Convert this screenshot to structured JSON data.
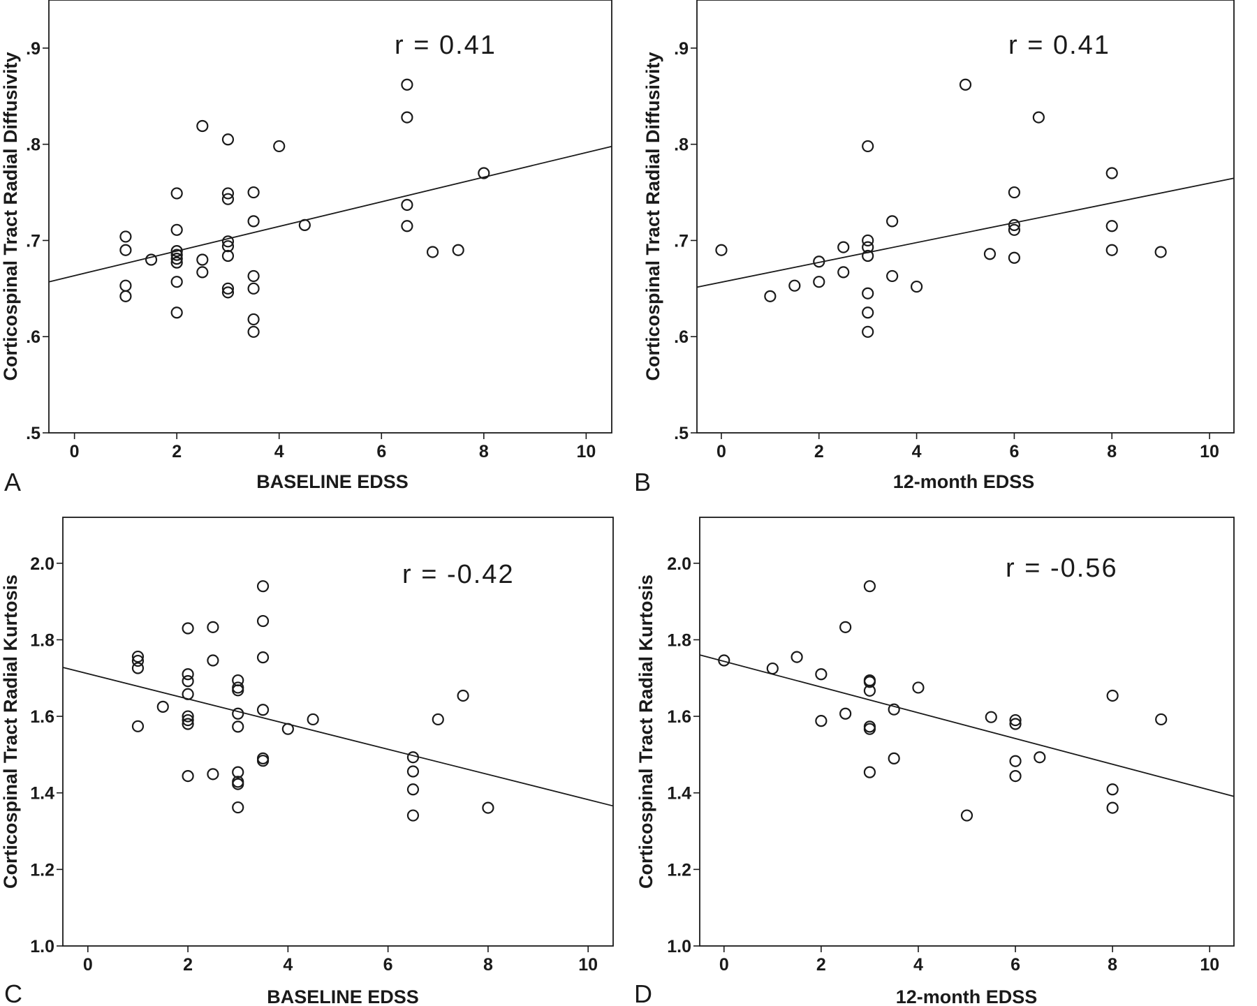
{
  "chart_data": [
    {
      "type": "scatter",
      "panel_label": "A",
      "xlabel": "BASELINE EDSS",
      "ylabel": "Corticospinal Tract Radial Diffusivity",
      "xlim": [
        -0.5,
        10.5
      ],
      "ylim": [
        0.5,
        0.95
      ],
      "xticks": [
        0,
        2,
        4,
        6,
        8,
        10
      ],
      "xtick_labels": [
        "0",
        "2",
        "4",
        "6",
        "8",
        "10"
      ],
      "yticks": [
        0.5,
        0.6,
        0.7,
        0.8,
        0.9
      ],
      "ytick_labels": [
        ".5",
        ".6",
        ".7",
        ".8",
        ".9"
      ],
      "annotation": "r = 0.41",
      "fit_line": {
        "intercept": 0.6634,
        "slope": 0.0128
      },
      "points": [
        [
          1,
          0.704
        ],
        [
          1,
          0.69
        ],
        [
          1,
          0.653
        ],
        [
          1,
          0.642
        ],
        [
          1.5,
          0.68
        ],
        [
          2,
          0.749
        ],
        [
          2,
          0.711
        ],
        [
          2,
          0.689
        ],
        [
          2,
          0.685
        ],
        [
          2,
          0.681
        ],
        [
          2,
          0.677
        ],
        [
          2,
          0.657
        ],
        [
          2,
          0.625
        ],
        [
          2.5,
          0.819
        ],
        [
          2.5,
          0.68
        ],
        [
          2.5,
          0.667
        ],
        [
          3,
          0.805
        ],
        [
          3,
          0.749
        ],
        [
          3,
          0.743
        ],
        [
          3,
          0.699
        ],
        [
          3,
          0.694
        ],
        [
          3,
          0.684
        ],
        [
          3,
          0.65
        ],
        [
          3,
          0.646
        ],
        [
          3.5,
          0.75
        ],
        [
          3.5,
          0.72
        ],
        [
          3.5,
          0.663
        ],
        [
          3.5,
          0.65
        ],
        [
          3.5,
          0.618
        ],
        [
          3.5,
          0.605
        ],
        [
          4,
          0.798
        ],
        [
          4.5,
          0.716
        ],
        [
          6.5,
          0.862
        ],
        [
          6.5,
          0.828
        ],
        [
          6.5,
          0.737
        ],
        [
          6.5,
          0.715
        ],
        [
          7,
          0.688
        ],
        [
          7.5,
          0.69
        ],
        [
          8,
          0.77
        ]
      ]
    },
    {
      "type": "scatter",
      "panel_label": "B",
      "xlabel": "12-month EDSS",
      "ylabel": "Corticospinal Tract Radial Diffusivity",
      "xlim": [
        -0.5,
        10.5
      ],
      "ylim": [
        0.5,
        0.95
      ],
      "xticks": [
        0,
        2,
        4,
        6,
        8,
        10
      ],
      "xtick_labels": [
        "0",
        "2",
        "4",
        "6",
        "8",
        "10"
      ],
      "yticks": [
        0.5,
        0.6,
        0.7,
        0.8,
        0.9
      ],
      "ytick_labels": [
        ".5",
        ".6",
        ".7",
        ".8",
        ".9"
      ],
      "annotation": "r = 0.41",
      "fit_line": {
        "intercept": 0.6566,
        "slope": 0.0103
      },
      "points": [
        [
          0,
          0.69
        ],
        [
          1,
          0.642
        ],
        [
          1.5,
          0.653
        ],
        [
          2,
          0.678
        ],
        [
          2,
          0.657
        ],
        [
          2.5,
          0.693
        ],
        [
          2.5,
          0.667
        ],
        [
          3,
          0.798
        ],
        [
          3,
          0.7
        ],
        [
          3,
          0.693
        ],
        [
          3,
          0.684
        ],
        [
          3,
          0.645
        ],
        [
          3,
          0.625
        ],
        [
          3,
          0.605
        ],
        [
          3.5,
          0.72
        ],
        [
          3.5,
          0.663
        ],
        [
          4,
          0.652
        ],
        [
          5,
          0.862
        ],
        [
          5.5,
          0.686
        ],
        [
          6,
          0.75
        ],
        [
          6,
          0.716
        ],
        [
          6,
          0.711
        ],
        [
          6,
          0.682
        ],
        [
          6.5,
          0.828
        ],
        [
          8,
          0.77
        ],
        [
          8,
          0.715
        ],
        [
          8,
          0.69
        ],
        [
          9,
          0.688
        ]
      ]
    },
    {
      "type": "scatter",
      "panel_label": "C",
      "xlabel": "BASELINE EDSS",
      "ylabel": "Corticospinal Tract Radial Kurtosis",
      "xlim": [
        -0.5,
        10.5
      ],
      "ylim": [
        1.0,
        2.12
      ],
      "xticks": [
        0,
        2,
        4,
        6,
        8,
        10
      ],
      "xtick_labels": [
        "0",
        "2",
        "4",
        "6",
        "8",
        "10"
      ],
      "yticks": [
        1.0,
        1.2,
        1.4,
        1.6,
        1.8,
        2.0
      ],
      "ytick_labels": [
        "1.0",
        "1.2",
        "1.4",
        "1.6",
        "1.8",
        "2.0"
      ],
      "annotation": "r = -0.42",
      "fit_line": {
        "intercept": 1.7113,
        "slope": -0.0329
      },
      "points": [
        [
          1,
          1.756
        ],
        [
          1,
          1.745
        ],
        [
          1,
          1.726
        ],
        [
          1,
          1.574
        ],
        [
          1.5,
          1.625
        ],
        [
          2,
          1.83
        ],
        [
          2,
          1.71
        ],
        [
          2,
          1.692
        ],
        [
          2,
          1.658
        ],
        [
          2,
          1.6
        ],
        [
          2,
          1.59
        ],
        [
          2,
          1.58
        ],
        [
          2,
          1.444
        ],
        [
          2.5,
          1.833
        ],
        [
          2.5,
          1.746
        ],
        [
          2.5,
          1.449
        ],
        [
          3,
          1.694
        ],
        [
          3,
          1.675
        ],
        [
          3,
          1.668
        ],
        [
          3,
          1.607
        ],
        [
          3,
          1.573
        ],
        [
          3,
          1.454
        ],
        [
          3,
          1.429
        ],
        [
          3,
          1.423
        ],
        [
          3,
          1.362
        ],
        [
          3.5,
          1.94
        ],
        [
          3.5,
          1.849
        ],
        [
          3.5,
          1.754
        ],
        [
          3.5,
          1.617
        ],
        [
          3.5,
          1.49
        ],
        [
          3.5,
          1.484
        ],
        [
          4,
          1.567
        ],
        [
          4.5,
          1.592
        ],
        [
          6.5,
          1.493
        ],
        [
          6.5,
          1.456
        ],
        [
          6.5,
          1.409
        ],
        [
          6.5,
          1.341
        ],
        [
          7,
          1.592
        ],
        [
          7.5,
          1.654
        ],
        [
          8,
          1.361
        ]
      ]
    },
    {
      "type": "scatter",
      "panel_label": "D",
      "xlabel": "12-month EDSS",
      "ylabel": "Corticospinal Tract Radial Kurtosis",
      "xlim": [
        -0.5,
        10.5
      ],
      "ylim": [
        1.0,
        2.12
      ],
      "xticks": [
        0,
        2,
        4,
        6,
        8,
        10
      ],
      "xtick_labels": [
        "0",
        "2",
        "4",
        "6",
        "8",
        "10"
      ],
      "yticks": [
        1.0,
        1.2,
        1.4,
        1.6,
        1.8,
        2.0
      ],
      "ytick_labels": [
        "1.0",
        "1.2",
        "1.4",
        "1.6",
        "1.8",
        "2.0"
      ],
      "annotation": "r = -0.56",
      "fit_line": {
        "intercept": 1.7436,
        "slope": -0.0336
      },
      "points": [
        [
          0,
          1.746
        ],
        [
          1,
          1.725
        ],
        [
          1.5,
          1.755
        ],
        [
          2,
          1.71
        ],
        [
          2,
          1.588
        ],
        [
          2.5,
          1.833
        ],
        [
          2.5,
          1.607
        ],
        [
          3,
          1.94
        ],
        [
          3,
          1.694
        ],
        [
          3,
          1.69
        ],
        [
          3,
          1.667
        ],
        [
          3,
          1.573
        ],
        [
          3,
          1.567
        ],
        [
          3,
          1.454
        ],
        [
          3.5,
          1.618
        ],
        [
          3.5,
          1.49
        ],
        [
          4,
          1.675
        ],
        [
          5,
          1.341
        ],
        [
          5.5,
          1.598
        ],
        [
          6,
          1.59
        ],
        [
          6,
          1.58
        ],
        [
          6,
          1.483
        ],
        [
          6,
          1.444
        ],
        [
          6.5,
          1.493
        ],
        [
          8,
          1.654
        ],
        [
          8,
          1.409
        ],
        [
          8,
          1.361
        ],
        [
          9,
          1.592
        ]
      ]
    }
  ]
}
